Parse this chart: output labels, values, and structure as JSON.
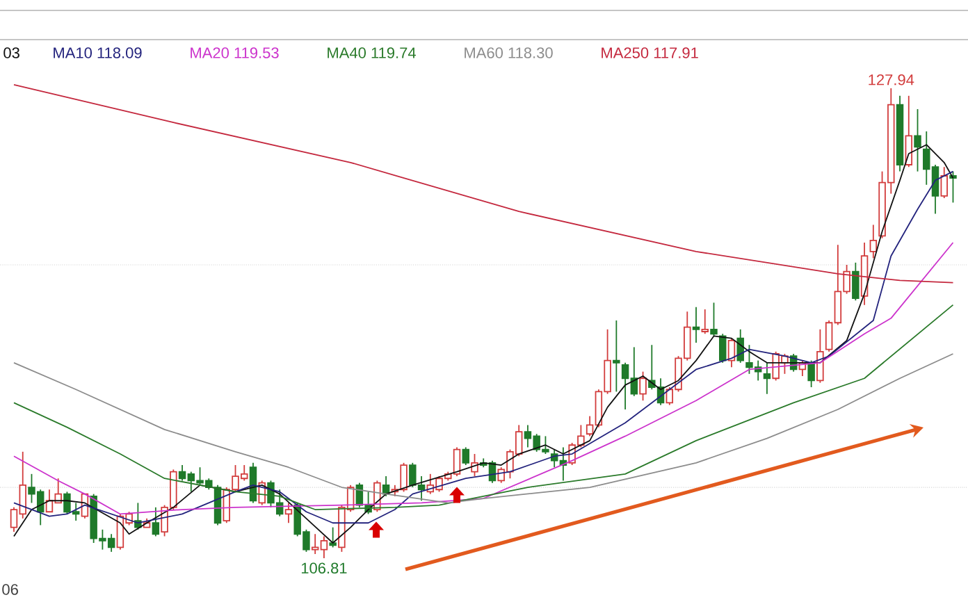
{
  "chart_data": {
    "type": "candlestick",
    "categories": [
      null,
      null,
      null,
      null,
      null,
      null,
      null,
      null,
      null,
      null,
      null,
      null,
      null,
      null,
      null,
      null,
      null,
      null,
      null,
      null,
      null,
      null,
      null,
      null,
      null,
      null,
      null,
      null,
      null,
      null,
      null,
      null,
      null,
      null,
      null,
      null,
      null,
      null,
      null,
      null,
      null,
      null,
      null,
      null,
      null,
      null,
      null,
      null,
      null,
      null,
      null,
      null,
      null,
      null,
      null,
      null,
      null,
      null,
      null,
      null,
      null,
      null,
      null,
      null,
      null,
      null,
      null,
      null,
      null,
      null,
      null,
      null,
      null,
      null,
      null,
      null,
      null,
      null,
      null,
      null,
      null,
      null,
      null,
      null,
      null,
      null,
      null,
      null,
      null,
      null,
      null,
      null,
      null,
      null,
      null,
      null,
      null,
      null,
      null,
      null,
      null,
      null,
      null,
      null,
      null,
      null,
      null
    ],
    "ohlc": [
      [
        108.2,
        109.1,
        108.0,
        109.0
      ],
      [
        108.8,
        111.6,
        108.6,
        110.1
      ],
      [
        110.0,
        110.6,
        109.3,
        109.7
      ],
      [
        109.8,
        109.9,
        108.3,
        108.9
      ],
      [
        108.9,
        109.9,
        108.9,
        109.4
      ],
      [
        109.3,
        110.4,
        109.3,
        109.7
      ],
      [
        109.7,
        109.8,
        108.8,
        108.9
      ],
      [
        108.9,
        109.3,
        108.5,
        108.8
      ],
      [
        108.7,
        109.7,
        108.6,
        109.7
      ],
      [
        109.6,
        109.7,
        107.5,
        107.7
      ],
      [
        107.7,
        108.1,
        107.2,
        107.6
      ],
      [
        107.7,
        107.9,
        107.1,
        107.3
      ],
      [
        107.3,
        108.8,
        107.2,
        108.7
      ],
      [
        108.4,
        108.9,
        108.3,
        108.8
      ],
      [
        108.5,
        109.3,
        108.1,
        108.2
      ],
      [
        108.2,
        108.6,
        108.2,
        108.4
      ],
      [
        108.4,
        109.1,
        107.8,
        107.9
      ],
      [
        108.0,
        109.2,
        107.8,
        109.1
      ],
      [
        109.1,
        110.8,
        109.0,
        110.7
      ],
      [
        110.7,
        111.0,
        110.3,
        110.4
      ],
      [
        110.6,
        110.7,
        109.8,
        110.3
      ],
      [
        110.3,
        110.9,
        110.1,
        110.2
      ],
      [
        110.3,
        110.4,
        109.9,
        110.0
      ],
      [
        110.0,
        110.1,
        108.3,
        108.4
      ],
      [
        108.5,
        110.0,
        108.4,
        109.9
      ],
      [
        109.9,
        111.0,
        109.8,
        110.5
      ],
      [
        110.4,
        111.0,
        110.3,
        110.6
      ],
      [
        110.9,
        111.1,
        109.3,
        109.4
      ],
      [
        109.3,
        110.3,
        109.2,
        110.2
      ],
      [
        110.2,
        110.3,
        109.1,
        109.3
      ],
      [
        109.3,
        109.9,
        108.7,
        108.8
      ],
      [
        108.8,
        109.3,
        108.4,
        109.0
      ],
      [
        109.2,
        109.3,
        107.8,
        107.9
      ],
      [
        108.0,
        108.1,
        107.1,
        107.2
      ],
      [
        107.2,
        107.9,
        107.0,
        107.3
      ],
      [
        107.2,
        107.8,
        106.81,
        107.6
      ],
      [
        107.5,
        108.2,
        107.3,
        107.4
      ],
      [
        107.3,
        109.2,
        107.1,
        109.1
      ],
      [
        109.0,
        110.1,
        108.9,
        110.0
      ],
      [
        110.1,
        110.2,
        109.1,
        109.2
      ],
      [
        109.2,
        109.8,
        108.8,
        108.9
      ],
      [
        109.0,
        110.3,
        108.9,
        110.2
      ],
      [
        110.1,
        110.5,
        109.6,
        109.7
      ],
      [
        109.8,
        110.1,
        109.6,
        109.9
      ],
      [
        109.9,
        111.1,
        109.8,
        111.0
      ],
      [
        111.0,
        111.1,
        110.0,
        110.1
      ],
      [
        110.1,
        110.5,
        109.4,
        109.9
      ],
      [
        109.8,
        110.6,
        109.7,
        110.1
      ],
      [
        109.9,
        110.5,
        109.8,
        110.4
      ],
      [
        110.4,
        110.7,
        110.3,
        110.6
      ],
      [
        110.6,
        111.8,
        110.5,
        111.7
      ],
      [
        111.7,
        111.8,
        111.0,
        111.1
      ],
      [
        110.7,
        111.5,
        110.5,
        111.1
      ],
      [
        111.1,
        111.3,
        110.9,
        111.0
      ],
      [
        111.1,
        111.2,
        110.2,
        110.3
      ],
      [
        110.3,
        110.9,
        110.2,
        110.8
      ],
      [
        110.7,
        111.7,
        110.4,
        111.6
      ],
      [
        111.5,
        112.8,
        111.4,
        112.5
      ],
      [
        112.5,
        112.8,
        111.8,
        112.2
      ],
      [
        112.3,
        112.4,
        111.6,
        111.7
      ],
      [
        111.7,
        112.3,
        111.5,
        111.6
      ],
      [
        111.5,
        111.7,
        110.9,
        111.2
      ],
      [
        111.2,
        111.8,
        110.3,
        111.0
      ],
      [
        111.1,
        112.0,
        111.0,
        111.9
      ],
      [
        111.9,
        112.8,
        111.8,
        112.3
      ],
      [
        112.4,
        113.2,
        112.3,
        112.8
      ],
      [
        112.8,
        114.4,
        112.7,
        114.3
      ],
      [
        114.3,
        117.1,
        114.2,
        115.7
      ],
      [
        115.7,
        117.5,
        114.3,
        115.6
      ],
      [
        115.5,
        115.6,
        113.5,
        114.9
      ],
      [
        114.9,
        116.3,
        114.1,
        114.2
      ],
      [
        114.2,
        115.2,
        113.9,
        114.9
      ],
      [
        114.8,
        116.4,
        114.4,
        114.5
      ],
      [
        114.5,
        114.9,
        113.7,
        113.8
      ],
      [
        113.8,
        114.5,
        113.7,
        114.4
      ],
      [
        114.4,
        115.9,
        114.3,
        115.8
      ],
      [
        115.8,
        117.9,
        115.7,
        117.2
      ],
      [
        117.2,
        118.1,
        116.5,
        117.1
      ],
      [
        117.0,
        118.0,
        116.9,
        117.1
      ],
      [
        117.1,
        118.3,
        116.8,
        116.9
      ],
      [
        116.8,
        116.9,
        115.6,
        115.7
      ],
      [
        115.7,
        116.7,
        115.4,
        116.6
      ],
      [
        116.7,
        117.1,
        115.6,
        115.7
      ],
      [
        115.6,
        116.4,
        115.1,
        115.4
      ],
      [
        115.4,
        115.7,
        114.8,
        115.2
      ],
      [
        115.1,
        115.6,
        114.2,
        114.9
      ],
      [
        114.9,
        116.1,
        114.8,
        116.0
      ],
      [
        115.6,
        116.0,
        115.1,
        115.9
      ],
      [
        115.9,
        116.0,
        115.2,
        115.3
      ],
      [
        115.3,
        115.7,
        115.0,
        115.6
      ],
      [
        115.6,
        115.7,
        114.5,
        114.8
      ],
      [
        114.8,
        117.1,
        114.7,
        116.1
      ],
      [
        116.2,
        117.5,
        116.1,
        117.4
      ],
      [
        117.4,
        120.9,
        117.3,
        118.8
      ],
      [
        118.8,
        120.0,
        118.7,
        119.7
      ],
      [
        119.7,
        120.1,
        118.4,
        118.5
      ],
      [
        118.6,
        121.0,
        118.2,
        120.4
      ],
      [
        120.6,
        121.8,
        120.3,
        121.1
      ],
      [
        121.3,
        124.2,
        121.2,
        123.7
      ],
      [
        123.7,
        127.94,
        123.2,
        127.2
      ],
      [
        127.2,
        127.6,
        124.2,
        124.5
      ],
      [
        124.5,
        127.6,
        124.4,
        125.8
      ],
      [
        125.8,
        127.0,
        124.2,
        125.3
      ],
      [
        125.2,
        126.0,
        123.6,
        124.3
      ],
      [
        124.4,
        124.5,
        122.3,
        123.1
      ],
      [
        123.1,
        124.4,
        123.0,
        124.0
      ],
      [
        124.0,
        124.2,
        122.8,
        123.9
      ]
    ],
    "series": [
      {
        "type": "line",
        "name": "03",
        "color": "#111111",
        "values": [
          107.8,
          null,
          109.0,
          null,
          109.4,
          null,
          109.4,
          null,
          109.3,
          null,
          null,
          null,
          108.4,
          107.9,
          null,
          108.4,
          null,
          null,
          109.1,
          null,
          null,
          110.1,
          null,
          null,
          null,
          109.8,
          null,
          null,
          110.1,
          null,
          109.7,
          null,
          null,
          108.6,
          null,
          null,
          107.5,
          null,
          108.2,
          null,
          109.0,
          null,
          109.7,
          null,
          null,
          110.1,
          null,
          null,
          null,
          null,
          110.7,
          null,
          null,
          111.1,
          null,
          111.0,
          null,
          111.5,
          null,
          null,
          111.9,
          null,
          111.5,
          null,
          null,
          112.1,
          null,
          113.6,
          null,
          114.6,
          null,
          115.0,
          null,
          114.4,
          null,
          114.8,
          null,
          115.7,
          null,
          116.8,
          null,
          116.7,
          null,
          116.1,
          null,
          115.6,
          null,
          null,
          null,
          null,
          115.6,
          115.6,
          null,
          null,
          116.6,
          null,
          118.7,
          null,
          121.5,
          null,
          123.8,
          125.0,
          null,
          125.4,
          null,
          124.6,
          123.9
        ]
      },
      {
        "type": "line",
        "name": "MA10 118.09",
        "color": "#23237d",
        "values": [
          109.3,
          null,
          null,
          null,
          108.7,
          null,
          108.8,
          null,
          109.2,
          null,
          null,
          null,
          null,
          null,
          108.4,
          null,
          null,
          null,
          null,
          108.8,
          null,
          null,
          null,
          null,
          null,
          109.8,
          null,
          110.1,
          null,
          null,
          109.8,
          null,
          null,
          108.9,
          null,
          null,
          108.4,
          null,
          null,
          null,
          108.4,
          null,
          null,
          109.0,
          null,
          109.7,
          null,
          null,
          null,
          null,
          null,
          110.4,
          null,
          null,
          null,
          null,
          110.7,
          null,
          null,
          null,
          null,
          111.4,
          null,
          111.5,
          null,
          null,
          null,
          null,
          null,
          112.9,
          null,
          null,
          null,
          null,
          114.4,
          null,
          null,
          115.3,
          null,
          null,
          null,
          115.8,
          null,
          116.2,
          null,
          null,
          null,
          115.9,
          null,
          null,
          115.6,
          null,
          115.9,
          null,
          null,
          null,
          null,
          117.5,
          null,
          120.4,
          null,
          null,
          122.5,
          null,
          123.8,
          null,
          124.2
        ]
      },
      {
        "type": "line",
        "name": "MA20 119.53",
        "color": "#cc33cc",
        "values": [
          111.4,
          null,
          null,
          null,
          null,
          110.3,
          null,
          null,
          109.7,
          null,
          null,
          null,
          108.8,
          null,
          null,
          null,
          null,
          null,
          null,
          109.0,
          null,
          null,
          null,
          null,
          null,
          109.1,
          null,
          null,
          null,
          null,
          null,
          null,
          null,
          null,
          null,
          null,
          null,
          109.2,
          null,
          null,
          null,
          null,
          null,
          null,
          null,
          null,
          109.3,
          null,
          null,
          null,
          null,
          null,
          null,
          109.5,
          null,
          null,
          null,
          null,
          null,
          null,
          null,
          null,
          null,
          111.2,
          null,
          null,
          null,
          null,
          null,
          112.3,
          null,
          null,
          null,
          null,
          null,
          null,
          null,
          113.9,
          null,
          null,
          null,
          null,
          null,
          115.3,
          null,
          null,
          null,
          null,
          null,
          null,
          null,
          115.6,
          null,
          null,
          null,
          null,
          116.9,
          null,
          null,
          117.6,
          null,
          null,
          null,
          null,
          null,
          null,
          121.0
        ]
      },
      {
        "type": "line",
        "name": "MA40 119.74",
        "color": "#2a7a2a",
        "values": [
          113.8,
          null,
          null,
          null,
          null,
          null,
          112.7,
          null,
          null,
          null,
          null,
          null,
          111.5,
          null,
          null,
          null,
          null,
          110.4,
          null,
          null,
          null,
          null,
          null,
          null,
          null,
          109.8,
          null,
          null,
          null,
          null,
          109.6,
          null,
          null,
          null,
          109.0,
          null,
          null,
          null,
          null,
          null,
          null,
          null,
          null,
          109.1,
          null,
          null,
          null,
          null,
          109.2,
          null,
          null,
          null,
          null,
          null,
          null,
          null,
          null,
          null,
          110.0,
          null,
          null,
          null,
          null,
          null,
          null,
          null,
          null,
          null,
          null,
          110.6,
          null,
          null,
          null,
          null,
          null,
          null,
          null,
          112.1,
          null,
          null,
          null,
          null,
          null,
          null,
          null,
          null,
          null,
          null,
          113.8,
          null,
          null,
          null,
          null,
          null,
          null,
          null,
          114.9,
          null,
          null,
          null,
          null,
          null,
          null,
          null,
          null,
          null,
          118.2
        ]
      },
      {
        "type": "line",
        "name": "MA60 118.30",
        "color": "#8c8c8c",
        "values": [
          115.6,
          null,
          null,
          null,
          null,
          null,
          null,
          114.4,
          null,
          null,
          null,
          null,
          null,
          null,
          null,
          null,
          null,
          112.6,
          null,
          null,
          null,
          null,
          null,
          null,
          null,
          111.6,
          null,
          null,
          null,
          null,
          null,
          110.9,
          null,
          null,
          null,
          null,
          null,
          110.0,
          null,
          null,
          null,
          null,
          109.7,
          null,
          null,
          null,
          null,
          null,
          null,
          109.3,
          null,
          null,
          null,
          109.5,
          null,
          null,
          null,
          null,
          null,
          null,
          null,
          null,
          null,
          null,
          null,
          110.0,
          null,
          null,
          null,
          null,
          null,
          null,
          null,
          null,
          null,
          null,
          null,
          111.1,
          null,
          null,
          null,
          null,
          null,
          null,
          null,
          112.2,
          null,
          null,
          null,
          null,
          null,
          null,
          null,
          113.5,
          null,
          null,
          null,
          null,
          null,
          null,
          114.9,
          null,
          null,
          null,
          null,
          null,
          116.0
        ]
      },
      {
        "type": "line",
        "name": "MA250 117.91",
        "color": "#c4283e",
        "values": [
          128.1,
          null,
          null,
          null,
          null,
          null,
          null,
          null,
          null,
          null,
          null,
          null,
          null,
          null,
          null,
          null,
          null,
          null,
          126.4,
          null,
          null,
          null,
          null,
          null,
          null,
          null,
          null,
          null,
          null,
          null,
          null,
          null,
          null,
          null,
          null,
          null,
          null,
          null,
          124.6,
          null,
          null,
          null,
          null,
          null,
          null,
          null,
          null,
          null,
          null,
          null,
          null,
          null,
          null,
          null,
          null,
          null,
          null,
          122.4,
          null,
          null,
          null,
          null,
          null,
          null,
          null,
          null,
          null,
          null,
          null,
          null,
          null,
          null,
          null,
          null,
          null,
          null,
          null,
          120.6,
          null,
          null,
          null,
          null,
          null,
          null,
          null,
          120.1,
          null,
          null,
          null,
          null,
          null,
          null,
          null,
          119.6,
          null,
          null,
          null,
          null,
          null,
          null,
          119.3,
          null,
          null,
          null,
          null,
          null,
          119.2
        ]
      }
    ],
    "yticks": [
      {
        "value": 110,
        "label": null
      },
      {
        "value": 120,
        "label": null
      }
    ],
    "grid": "y",
    "legend": "top",
    "annotations": [
      {
        "text": "127.94",
        "y": 127.94
      },
      {
        "text": "106.81",
        "y": 106.81
      },
      "06"
    ]
  }
}
